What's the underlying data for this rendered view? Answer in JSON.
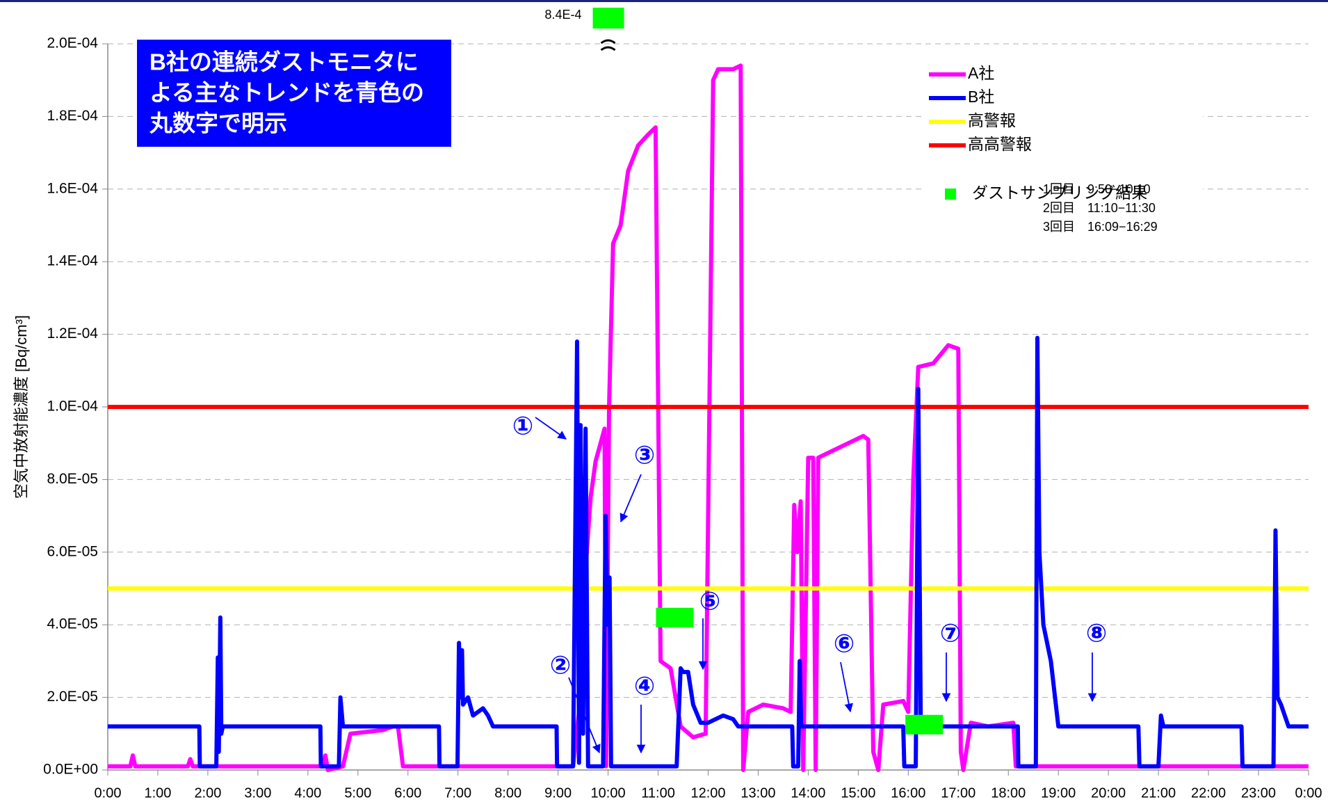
{
  "chart_data": {
    "type": "line",
    "y_label": "空気中放射能濃度 [Bq/cm³]",
    "xlim": [
      0,
      24
    ],
    "xticks": [
      {
        "value": 0,
        "label": "0:00"
      },
      {
        "value": 1,
        "label": "1:00"
      },
      {
        "value": 2,
        "label": "2:00"
      },
      {
        "value": 3,
        "label": "3:00"
      },
      {
        "value": 4,
        "label": "4:00"
      },
      {
        "value": 5,
        "label": "5:00"
      },
      {
        "value": 6,
        "label": "6:00"
      },
      {
        "value": 7,
        "label": "7:00"
      },
      {
        "value": 8,
        "label": "8:00"
      },
      {
        "value": 9,
        "label": "9:00"
      },
      {
        "value": 10,
        "label": "10:00"
      },
      {
        "value": 11,
        "label": "11:00"
      },
      {
        "value": 12,
        "label": "12:00"
      },
      {
        "value": 13,
        "label": "13:00"
      },
      {
        "value": 14,
        "label": "14:00"
      },
      {
        "value": 15,
        "label": "15:00"
      },
      {
        "value": 16,
        "label": "16:00"
      },
      {
        "value": 17,
        "label": "17:00"
      },
      {
        "value": 18,
        "label": "18:00"
      },
      {
        "value": 19,
        "label": "19:00"
      },
      {
        "value": 20,
        "label": "20:00"
      },
      {
        "value": 21,
        "label": "21:00"
      },
      {
        "value": 22,
        "label": "22:00"
      },
      {
        "value": 23,
        "label": "23:00"
      },
      {
        "value": 24,
        "label": "0:00"
      }
    ],
    "ylim": [
      0,
      0.0002
    ],
    "yticks": [
      {
        "value": 0,
        "label": "0.0E+00"
      },
      {
        "value": 2e-05,
        "label": "2.0E-05"
      },
      {
        "value": 4e-05,
        "label": "4.0E-05"
      },
      {
        "value": 6e-05,
        "label": "6.0E-05"
      },
      {
        "value": 8e-05,
        "label": "8.0E-05"
      },
      {
        "value": 0.0001,
        "label": "1.0E-04"
      },
      {
        "value": 0.00012,
        "label": "1.2E-04"
      },
      {
        "value": 0.00014,
        "label": "1.4E-04"
      },
      {
        "value": 0.00016,
        "label": "1.6E-04"
      },
      {
        "value": 0.00018,
        "label": "1.8E-04"
      },
      {
        "value": 0.0002,
        "label": "2.0E-04"
      }
    ],
    "grid": true,
    "legend": "upper right",
    "series": [
      {
        "name": "A社",
        "color": "#ff00ff",
        "x": [
          0,
          0.45,
          0.5,
          0.55,
          1.6,
          1.65,
          1.7,
          4.3,
          4.35,
          4.4,
          4.7,
          4.85,
          5.5,
          5.7,
          5.8,
          5.9,
          9.3,
          9.45,
          9.55,
          9.65,
          9.75,
          9.85,
          9.93,
          9.96,
          10.02,
          10.1,
          10.25,
          10.4,
          10.6,
          10.8,
          10.95,
          11.05,
          11.25,
          11.45,
          11.7,
          11.95,
          12.1,
          12.2,
          12.5,
          12.65,
          12.7,
          12.8,
          13.1,
          13.5,
          13.65,
          13.72,
          13.78,
          13.85,
          13.9,
          14.0,
          14.1,
          14.15,
          14.2,
          14.5,
          14.8,
          15.1,
          15.2,
          15.3,
          15.4,
          15.5,
          15.9,
          16.0,
          16.1,
          16.2,
          16.5,
          16.8,
          17.0,
          17.05,
          17.1,
          17.25,
          17.6,
          18.1,
          18.15,
          24
        ],
        "values": [
          1e-06,
          1e-06,
          4e-06,
          1e-06,
          1e-06,
          3e-06,
          1e-06,
          1e-06,
          4e-06,
          0,
          1e-06,
          1e-05,
          1.1e-05,
          1.2e-05,
          1.2e-05,
          1e-06,
          1e-06,
          2e-05,
          5.5e-05,
          7.5e-05,
          8.5e-05,
          9e-05,
          9.4e-05,
          1e-06,
          0.0001,
          0.000145,
          0.00015,
          0.000165,
          0.000172,
          0.000175,
          0.000177,
          3e-05,
          2.8e-05,
          1.2e-05,
          9e-06,
          1e-05,
          0.00019,
          0.000193,
          0.000193,
          0.000194,
          0,
          1.6e-05,
          1.8e-05,
          1.7e-05,
          1.6e-05,
          7.3e-05,
          6e-05,
          7.4e-05,
          0,
          8.6e-05,
          8.6e-05,
          0,
          8.6e-05,
          8.8e-05,
          9e-05,
          9.2e-05,
          9.1e-05,
          5e-06,
          0,
          1.8e-05,
          1.9e-05,
          1.6e-05,
          8e-05,
          0.000111,
          0.000112,
          0.000117,
          0.000116,
          5e-06,
          0,
          1.3e-05,
          1.2e-05,
          1.3e-05,
          1e-06,
          1e-06
        ]
      },
      {
        "name": "B社",
        "color": "#0000ff",
        "x": [
          0,
          1.83,
          1.84,
          2.17,
          2.2,
          2.22,
          2.25,
          2.27,
          2.3,
          2.4,
          4.25,
          4.26,
          4.62,
          4.65,
          4.7,
          6.62,
          6.63,
          6.99,
          7.02,
          7.05,
          7.08,
          7.1,
          7.2,
          7.3,
          7.5,
          7.6,
          7.7,
          8.97,
          8.98,
          9.3,
          9.38,
          9.42,
          9.45,
          9.5,
          9.55,
          9.6,
          9.65,
          9.75,
          9.9,
          9.95,
          9.99,
          10.03,
          10.06,
          10.1,
          11.37,
          11.45,
          11.5,
          11.6,
          11.7,
          11.85,
          12.0,
          12.3,
          12.5,
          12.6,
          13.68,
          13.7,
          13.8,
          13.83,
          13.86,
          15.9,
          15.92,
          16.15,
          16.2,
          16.25,
          16.3,
          18.19,
          18.2,
          18.55,
          18.58,
          18.62,
          18.7,
          18.85,
          19.0,
          20.6,
          20.62,
          21.0,
          21.05,
          21.1,
          22.66,
          22.68,
          23.3,
          23.34,
          23.38,
          23.45,
          23.6,
          24
        ],
        "values": [
          1.2e-05,
          1.2e-05,
          1e-06,
          1e-06,
          3.1e-05,
          5e-06,
          4.2e-05,
          1e-05,
          1.2e-05,
          1.2e-05,
          1.2e-05,
          1e-06,
          1e-06,
          2e-05,
          1.2e-05,
          1.2e-05,
          1e-06,
          1e-06,
          3.5e-05,
          2e-05,
          3.3e-05,
          1.8e-05,
          2e-05,
          1.5e-05,
          1.7e-05,
          1.5e-05,
          1.2e-05,
          1.2e-05,
          1e-06,
          1e-06,
          0.000118,
          2e-06,
          9.5e-05,
          1e-05,
          9.4e-05,
          1e-06,
          1e-06,
          1e-06,
          1e-06,
          7e-05,
          4e-05,
          5.3e-05,
          1e-06,
          1e-06,
          1e-06,
          2.8e-05,
          2.7e-05,
          2.7e-05,
          1.8e-05,
          1.3e-05,
          1.3e-05,
          1.5e-05,
          1.4e-05,
          1.2e-05,
          1.2e-05,
          1e-06,
          1e-06,
          3e-05,
          1.2e-05,
          1.2e-05,
          1e-06,
          1e-06,
          0.000105,
          1.2e-05,
          1.2e-05,
          1.2e-05,
          1e-06,
          1e-06,
          0.000119,
          6e-05,
          4e-05,
          3e-05,
          1.2e-05,
          1.2e-05,
          1e-06,
          1e-06,
          1.5e-05,
          1.2e-05,
          1.2e-05,
          1e-06,
          1e-06,
          6.6e-05,
          2e-05,
          1.8e-05,
          1.2e-05,
          1.2e-05
        ]
      },
      {
        "name": "高警報",
        "color": "#ffff00",
        "x": [
          0,
          24
        ],
        "values": [
          5e-05,
          5e-05
        ]
      },
      {
        "name": "高高警報",
        "color": "#ff0000",
        "x": [
          0,
          24
        ],
        "values": [
          0.0001,
          0.0001
        ]
      },
      {
        "name": "ダストサンプリング結果",
        "color": "#00ff00",
        "marker": "square",
        "x": [
          10,
          11.333,
          16.317
        ],
        "values": [
          0.00084,
          4.2e-05,
          1.25e-05
        ],
        "value_labels": [
          "8.4E-4",
          null,
          null
        ]
      }
    ],
    "sampling_notes": [
      "1回目　9:50−10:10",
      "2回目　11:10−11:30",
      "3回目　16:09−16:29"
    ],
    "note_box": [
      "B社の連続ダストモニタに",
      "よる主なトレンドを青色の",
      "丸数字で明示"
    ],
    "annotations": [
      "①",
      "②",
      "③",
      "④",
      "⑤",
      "⑥",
      "⑦",
      "⑧"
    ]
  }
}
